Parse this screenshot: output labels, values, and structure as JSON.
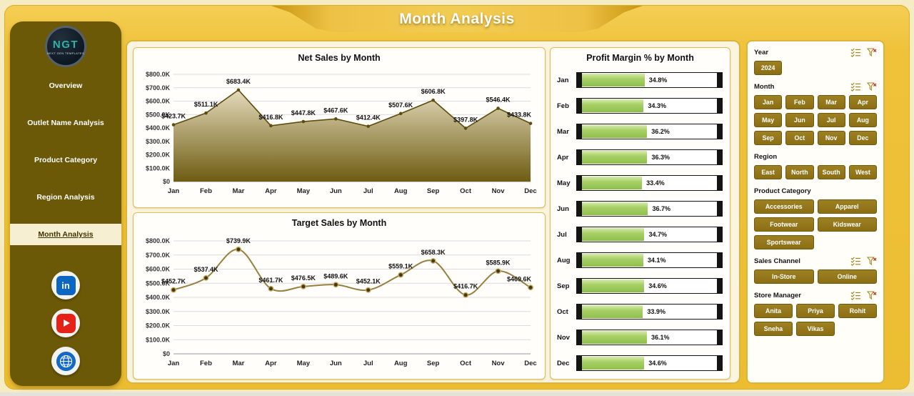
{
  "header": {
    "title": "Month Analysis"
  },
  "sidebar": {
    "logo": {
      "text": "NGT",
      "subtext": "NEXT GEN TEMPLATES"
    },
    "items": [
      {
        "label": "Overview",
        "active": false
      },
      {
        "label": "Outlet Name Analysis",
        "active": false
      },
      {
        "label": "Product Category",
        "active": false
      },
      {
        "label": "Region Analysis",
        "active": false
      },
      {
        "label": "Month Analysis",
        "active": true
      }
    ],
    "social": [
      {
        "name": "linkedin",
        "label": "in"
      },
      {
        "name": "youtube",
        "label": ""
      },
      {
        "name": "globe",
        "label": ""
      }
    ]
  },
  "chart_data": [
    {
      "type": "area",
      "title": "Net Sales by Month",
      "categories": [
        "Jan",
        "Feb",
        "Mar",
        "Apr",
        "May",
        "Jun",
        "Jul",
        "Aug",
        "Sep",
        "Oct",
        "Nov",
        "Dec"
      ],
      "values": [
        423.7,
        511.1,
        683.4,
        416.8,
        447.8,
        467.6,
        412.4,
        507.6,
        606.8,
        397.8,
        546.4,
        433.8
      ],
      "labels": [
        "$423.7K",
        "$511.1K",
        "$683.4K",
        "$416.8K",
        "$447.8K",
        "$467.6K",
        "$412.4K",
        "$507.6K",
        "$606.8K",
        "$397.8K",
        "$546.4K",
        "$433.8K"
      ],
      "xlabel": "",
      "ylabel": "",
      "ylim": [
        0,
        800
      ],
      "yticks": [
        "$0",
        "$100.0K",
        "$200.0K",
        "$300.0K",
        "$400.0K",
        "$500.0K",
        "$600.0K",
        "$700.0K",
        "$800.0K"
      ],
      "grid": true,
      "legend": "none"
    },
    {
      "type": "line",
      "title": "Target Sales by Month",
      "categories": [
        "Jan",
        "Feb",
        "Mar",
        "Apr",
        "May",
        "Jun",
        "Jul",
        "Aug",
        "Sep",
        "Oct",
        "Nov",
        "Dec"
      ],
      "values": [
        452.7,
        537.4,
        739.9,
        461.7,
        476.5,
        489.6,
        452.1,
        559.1,
        658.3,
        416.7,
        585.9,
        469.6
      ],
      "labels": [
        "$452.7K",
        "$537.4K",
        "$739.9K",
        "$461.7K",
        "$476.5K",
        "$489.6K",
        "$452.1K",
        "$559.1K",
        "$658.3K",
        "$416.7K",
        "$585.9K",
        "$469.6K"
      ],
      "xlabel": "",
      "ylabel": "",
      "ylim": [
        0,
        800
      ],
      "yticks": [
        "$0",
        "$100.0K",
        "$200.0K",
        "$300.0K",
        "$400.0K",
        "$500.0K",
        "$600.0K",
        "$700.0K",
        "$800.0K"
      ],
      "grid": true,
      "legend": "none"
    },
    {
      "type": "bar",
      "title": "Profit Margin % by Month",
      "orientation": "horizontal",
      "categories": [
        "Jan",
        "Feb",
        "Mar",
        "Apr",
        "May",
        "Jun",
        "Jul",
        "Aug",
        "Sep",
        "Oct",
        "Nov",
        "Dec"
      ],
      "values": [
        34.8,
        34.3,
        36.2,
        36.3,
        33.4,
        36.7,
        34.7,
        34.1,
        34.6,
        33.9,
        36.1,
        34.6
      ],
      "labels": [
        "34.8%",
        "34.3%",
        "36.2%",
        "36.3%",
        "33.4%",
        "36.7%",
        "34.7%",
        "34.1%",
        "34.6%",
        "33.9%",
        "36.1%",
        "34.6%"
      ],
      "xmax": 75,
      "grid": false,
      "legend": "none"
    }
  ],
  "slicers": [
    {
      "id": "year",
      "label": "Year",
      "icons": true,
      "cols": 4,
      "options": [
        "2024"
      ]
    },
    {
      "id": "month",
      "label": "Month",
      "icons": true,
      "cols": 4,
      "options": [
        "Jan",
        "Feb",
        "Mar",
        "Apr",
        "May",
        "Jun",
        "Jul",
        "Aug",
        "Sep",
        "Oct",
        "Nov",
        "Dec"
      ]
    },
    {
      "id": "region",
      "label": "Region",
      "icons": false,
      "cols": 4,
      "options": [
        "East",
        "North",
        "South",
        "West"
      ]
    },
    {
      "id": "product-category",
      "label": "Product Category",
      "icons": false,
      "cols": 2,
      "options": [
        "Accessories",
        "Apparel",
        "Footwear",
        "Kidswear",
        "Sportswear"
      ]
    },
    {
      "id": "sales-channel",
      "label": "Sales Channel",
      "icons": true,
      "cols": 2,
      "options": [
        "In-Store",
        "Online"
      ]
    },
    {
      "id": "store-manager",
      "label": "Store Manager",
      "icons": true,
      "cols": 3,
      "options": [
        "Anita",
        "Priya",
        "Rohit",
        "Sneha",
        "Vikas"
      ]
    }
  ],
  "colors": {
    "background_gold": "#EFC23A",
    "sidebar": "#6B5907",
    "active_nav_bg": "#F6EFD2",
    "panel_cream": "#FBF5DF",
    "panel_border": "#DDB33B",
    "slicer_button": "#8C6F14",
    "area_line": "#5E4D0E",
    "area_fill_top": "#F8F0D8",
    "area_fill_bottom": "#6E5C12",
    "target_line": "#97803F",
    "bar_green": "#9CC75B",
    "linkedin": "#0A66C2",
    "youtube": "#E62117",
    "globe": "#1269C7",
    "logo_teal": "#2FB3A8"
  }
}
